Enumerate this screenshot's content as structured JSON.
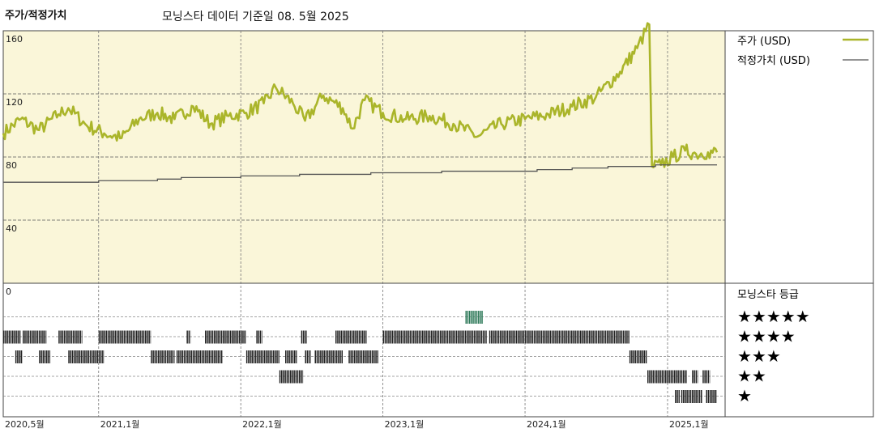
{
  "header": {
    "title": "주가/적정가치",
    "subtitle": "모닝스타 데이터 기준일 08. 5월 2025"
  },
  "colors": {
    "price_line": "#aab52a",
    "fair_value_line": "#555555",
    "plot_bg": "#faf6d9",
    "rating_bar": "#222222",
    "rating_highlight": "#2f7a5a"
  },
  "chart_data": {
    "type": "line",
    "title": "주가/적정가치",
    "ylim": [
      0,
      160
    ],
    "y_ticks": [
      160,
      120,
      80,
      40,
      0
    ],
    "x_range": [
      "2020-05-01",
      "2025-05-08"
    ],
    "x_ticks": [
      {
        "date": "2020-05-01",
        "label": "2020,5월"
      },
      {
        "date": "2021-01-01",
        "label": "2021,1월"
      },
      {
        "date": "2022-01-01",
        "label": "2022,1월"
      },
      {
        "date": "2023-01-01",
        "label": "2023,1월"
      },
      {
        "date": "2024-01-01",
        "label": "2024,1월"
      },
      {
        "date": "2025-01-01",
        "label": "2025,1월"
      }
    ],
    "grid": true,
    "legend_position": "right",
    "series": [
      {
        "name": "주가 (USD)",
        "points": [
          [
            "2020-05-01",
            95
          ],
          [
            "2020-06-15",
            104
          ],
          [
            "2020-08-01",
            97
          ],
          [
            "2020-09-20",
            107
          ],
          [
            "2020-10-15",
            111
          ],
          [
            "2020-12-01",
            100
          ],
          [
            "2021-01-15",
            95
          ],
          [
            "2021-03-01",
            92
          ],
          [
            "2021-04-15",
            104
          ],
          [
            "2021-06-01",
            108
          ],
          [
            "2021-07-15",
            104
          ],
          [
            "2021-09-01",
            112
          ],
          [
            "2021-10-15",
            101
          ],
          [
            "2021-12-01",
            106
          ],
          [
            "2022-01-15",
            108
          ],
          [
            "2022-03-01",
            114
          ],
          [
            "2022-04-01",
            124
          ],
          [
            "2022-05-15",
            114
          ],
          [
            "2022-06-15",
            103
          ],
          [
            "2022-08-01",
            119
          ],
          [
            "2022-09-20",
            111
          ],
          [
            "2022-10-15",
            98
          ],
          [
            "2022-11-15",
            116
          ],
          [
            "2023-01-01",
            108
          ],
          [
            "2023-03-01",
            104
          ],
          [
            "2023-05-01",
            106
          ],
          [
            "2023-07-01",
            101
          ],
          [
            "2023-09-01",
            93
          ],
          [
            "2023-11-01",
            101
          ],
          [
            "2024-01-01",
            104
          ],
          [
            "2024-03-01",
            107
          ],
          [
            "2024-05-01",
            112
          ],
          [
            "2024-07-01",
            118
          ],
          [
            "2024-09-01",
            134
          ],
          [
            "2024-10-15",
            149
          ],
          [
            "2024-11-15",
            164
          ],
          [
            "2024-11-22",
            74
          ],
          [
            "2024-12-15",
            75
          ],
          [
            "2025-01-15",
            80
          ],
          [
            "2025-02-15",
            84
          ],
          [
            "2025-03-15",
            82
          ],
          [
            "2025-04-15",
            83
          ],
          [
            "2025-05-08",
            83
          ]
        ]
      },
      {
        "name": "적정가치 (USD)",
        "points": [
          [
            "2020-05-01",
            64
          ],
          [
            "2021-01-01",
            65
          ],
          [
            "2021-06-01",
            66
          ],
          [
            "2021-08-01",
            67
          ],
          [
            "2022-01-01",
            68
          ],
          [
            "2022-06-01",
            69
          ],
          [
            "2022-12-01",
            70
          ],
          [
            "2023-06-01",
            71
          ],
          [
            "2023-12-01",
            71
          ],
          [
            "2024-02-01",
            72
          ],
          [
            "2024-05-01",
            73
          ],
          [
            "2024-08-01",
            74
          ],
          [
            "2024-12-01",
            75
          ],
          [
            "2025-05-08",
            75
          ]
        ]
      }
    ],
    "rating_panel": {
      "title": "모닝스타 등급",
      "levels": [
        {
          "stars": 5,
          "label": "★★★★★"
        },
        {
          "stars": 4,
          "label": "★★★★"
        },
        {
          "stars": 3,
          "label": "★★★"
        },
        {
          "stars": 2,
          "label": "★★"
        },
        {
          "stars": 1,
          "label": "★"
        }
      ],
      "periods": [
        {
          "start": "2023-08-01",
          "end": "2023-09-15",
          "stars": 5
        },
        {
          "start": "2020-05-01",
          "end": "2020-06-15",
          "stars": 4
        },
        {
          "start": "2020-06-20",
          "end": "2020-08-20",
          "stars": 4
        },
        {
          "start": "2020-09-20",
          "end": "2020-11-20",
          "stars": 4
        },
        {
          "start": "2021-01-01",
          "end": "2021-05-15",
          "stars": 4
        },
        {
          "start": "2021-08-15",
          "end": "2021-08-25",
          "stars": 4
        },
        {
          "start": "2021-10-01",
          "end": "2022-01-15",
          "stars": 4
        },
        {
          "start": "2022-02-10",
          "end": "2022-02-25",
          "stars": 4
        },
        {
          "start": "2022-06-05",
          "end": "2022-06-20",
          "stars": 4
        },
        {
          "start": "2022-09-01",
          "end": "2022-11-20",
          "stars": 4
        },
        {
          "start": "2023-01-01",
          "end": "2023-09-25",
          "stars": 4
        },
        {
          "start": "2023-10-01",
          "end": "2024-09-25",
          "stars": 4
        },
        {
          "start": "2020-06-01",
          "end": "2020-06-20",
          "stars": 3
        },
        {
          "start": "2020-08-01",
          "end": "2020-08-30",
          "stars": 3
        },
        {
          "start": "2020-10-15",
          "end": "2021-01-15",
          "stars": 3
        },
        {
          "start": "2021-05-15",
          "end": "2021-07-15",
          "stars": 3
        },
        {
          "start": "2021-07-20",
          "end": "2021-11-15",
          "stars": 3
        },
        {
          "start": "2022-01-15",
          "end": "2022-04-10",
          "stars": 3
        },
        {
          "start": "2022-04-25",
          "end": "2022-05-25",
          "stars": 3
        },
        {
          "start": "2022-06-15",
          "end": "2022-06-30",
          "stars": 3
        },
        {
          "start": "2022-07-10",
          "end": "2022-09-20",
          "stars": 3
        },
        {
          "start": "2022-10-05",
          "end": "2022-12-20",
          "stars": 3
        },
        {
          "start": "2024-09-25",
          "end": "2024-11-10",
          "stars": 3
        },
        {
          "start": "2022-04-10",
          "end": "2022-06-10",
          "stars": 2
        },
        {
          "start": "2024-11-10",
          "end": "2025-02-20",
          "stars": 2
        },
        {
          "start": "2025-03-05",
          "end": "2025-03-20",
          "stars": 2
        },
        {
          "start": "2025-04-01",
          "end": "2025-04-20",
          "stars": 2
        },
        {
          "start": "2025-01-20",
          "end": "2025-02-01",
          "stars": 1
        },
        {
          "start": "2025-02-05",
          "end": "2025-04-01",
          "stars": 1
        },
        {
          "start": "2025-04-10",
          "end": "2025-05-08",
          "stars": 1
        }
      ]
    }
  }
}
